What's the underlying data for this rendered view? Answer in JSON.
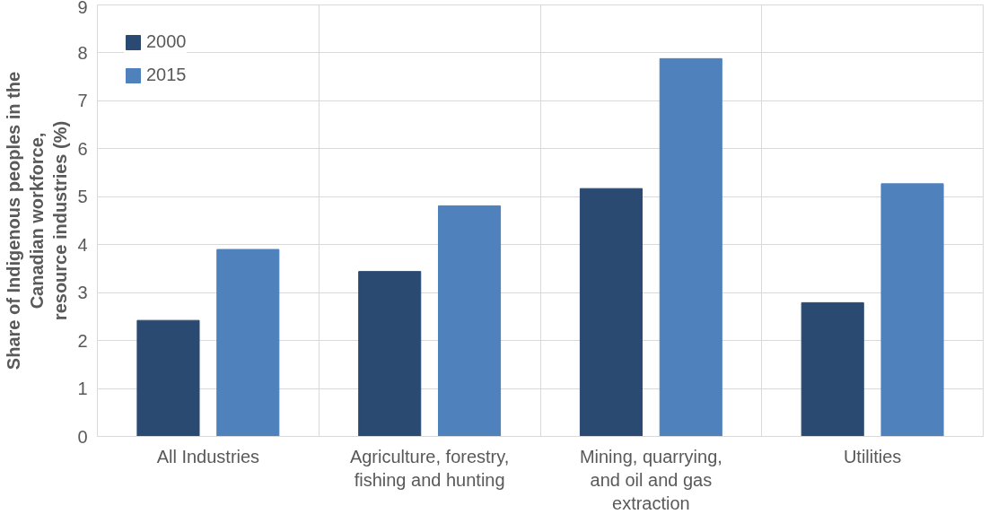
{
  "chart_data": {
    "type": "bar",
    "ylabel": "Share of Indigenous peoples in the\nCanadian workforce,\nresource industries (%)",
    "categories": [
      "All Industries",
      "Agriculture, forestry,\nfishing and hunting",
      "Mining, quarrying,\nand oil and gas\nextraction",
      "Utilities"
    ],
    "series": [
      {
        "name": "2000",
        "color": "#2a4a72",
        "values": [
          2.42,
          3.44,
          5.17,
          2.79
        ]
      },
      {
        "name": "2015",
        "color": "#4f81bd",
        "values": [
          3.9,
          4.81,
          7.88,
          5.27
        ]
      }
    ],
    "ylim": [
      0,
      9
    ],
    "yticks": [
      0,
      1,
      2,
      3,
      4,
      5,
      6,
      7,
      8,
      9
    ],
    "grid": true,
    "legend": "top left"
  }
}
